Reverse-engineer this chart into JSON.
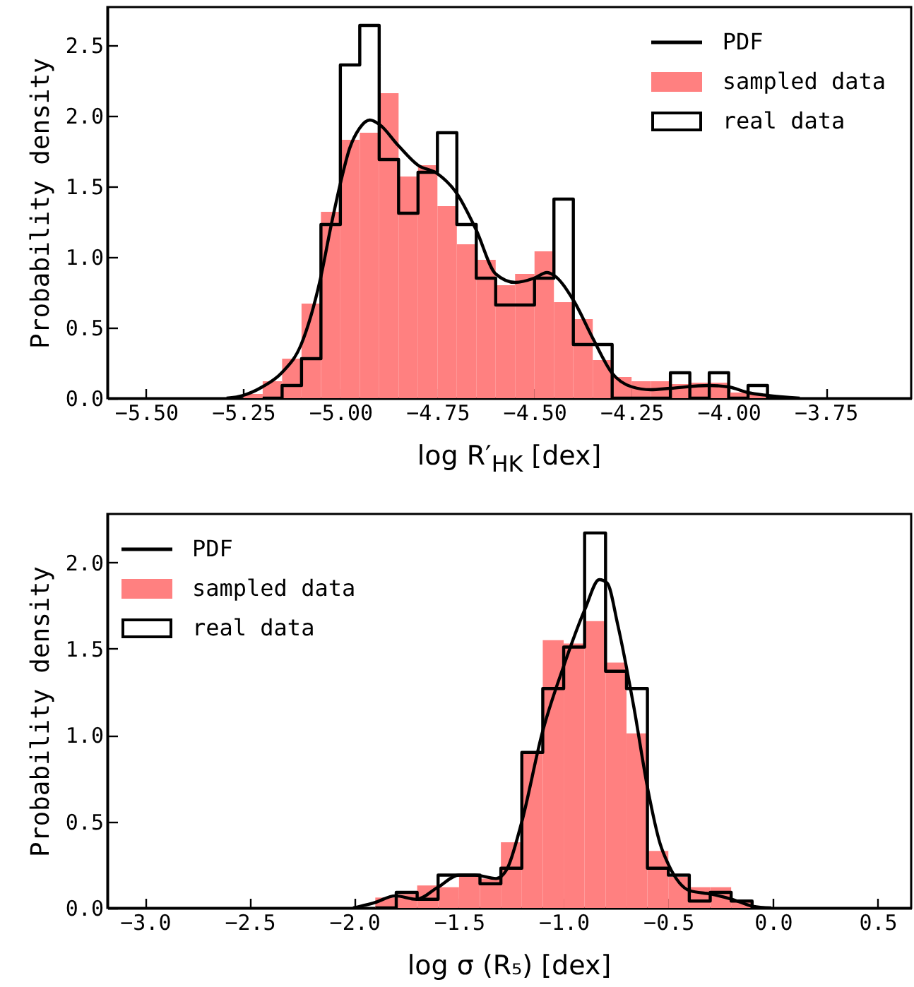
{
  "chart_data": [
    {
      "type": "histogram",
      "xlabel": "log R′$_{HK}$  [dex]",
      "ylabel": "Probability density",
      "legend": "top right",
      "xlim": [
        -5.6,
        -3.53
      ],
      "ylim": [
        0,
        2.77
      ],
      "xticks": [
        {
          "value": -5.5,
          "label": "−5.50"
        },
        {
          "value": -5.25,
          "label": "−5.25"
        },
        {
          "value": -5.0,
          "label": "−5.00"
        },
        {
          "value": -4.75,
          "label": "−4.75"
        },
        {
          "value": -4.5,
          "label": "−4.50"
        },
        {
          "value": -4.25,
          "label": "−4.25"
        },
        {
          "value": -4.0,
          "label": "−4.00"
        },
        {
          "value": -3.75,
          "label": "−3.75"
        }
      ],
      "yticks": [
        {
          "value": 0,
          "label": "0.0"
        },
        {
          "value": 0.5,
          "label": "0.5"
        },
        {
          "value": 1,
          "label": "1.0"
        },
        {
          "value": 1.5,
          "label": "1.5"
        },
        {
          "value": 2,
          "label": "2.0"
        },
        {
          "value": 2.5,
          "label": "2.5"
        }
      ],
      "bins": [
        -5.25,
        -5.2,
        -5.15,
        -5.1,
        -5.05,
        -5.0,
        -4.95,
        -4.9,
        -4.85,
        -4.8,
        -4.75,
        -4.7,
        -4.65,
        -4.6,
        -4.55,
        -4.5,
        -4.45,
        -4.4,
        -4.35,
        -4.3,
        -4.25,
        -4.2,
        -4.15,
        -4.1,
        -4.05,
        -4.0,
        -3.95,
        -3.9
      ],
      "series": [
        {
          "name": "PDF",
          "type": "line",
          "color": "#000000",
          "x": [
            -5.293,
            -5.25,
            -5.201,
            -5.151,
            -5.101,
            -5.051,
            -5.024,
            -5.0,
            -4.976,
            -4.951,
            -4.924,
            -4.9,
            -4.851,
            -4.8,
            -4.75,
            -4.7,
            -4.65,
            -4.6,
            -4.55,
            -4.501,
            -4.468,
            -4.45,
            -4.399,
            -4.349,
            -4.301,
            -4.249,
            -4.201,
            -4.15,
            -4.051,
            -4.0,
            -3.951,
            -3.902,
            -3.817
          ],
          "values": [
            0,
            0.02,
            0.08,
            0.18,
            0.38,
            0.85,
            1.22,
            1.52,
            1.77,
            1.91,
            1.97,
            1.94,
            1.79,
            1.65,
            1.59,
            1.45,
            1.19,
            0.88,
            0.82,
            0.85,
            0.89,
            0.87,
            0.69,
            0.42,
            0.18,
            0.08,
            0.06,
            0.07,
            0.09,
            0.08,
            0.04,
            0.02,
            0
          ]
        },
        {
          "name": "sampled data",
          "color": "#ff8080",
          "values": [
            0.03,
            0.12,
            0.28,
            0.67,
            1.32,
            1.83,
            1.88,
            2.16,
            1.57,
            1.65,
            1.36,
            1.09,
            0.98,
            0.8,
            0.88,
            1.04,
            0.68,
            0.56,
            0.27,
            0.15,
            0.12,
            0.12,
            0.1,
            0.11,
            0.11,
            0.04,
            0.03
          ]
        },
        {
          "name": "real data",
          "type": "step",
          "color": "#000000",
          "x": [
            -5.2,
            -5.15,
            -5.1,
            -5.05,
            -5.0,
            -4.95,
            -4.9,
            -4.85,
            -4.8,
            -4.75,
            -4.7,
            -4.65,
            -4.6,
            -4.55,
            -4.5,
            -4.45,
            -4.4,
            -4.35,
            -4.3,
            -4.25,
            -4.2,
            -4.15,
            -4.1,
            -4.05,
            -4.0,
            -3.95,
            -3.9
          ],
          "values": [
            0,
            0.09,
            0.28,
            1.23,
            2.36,
            2.64,
            1.69,
            1.31,
            1.6,
            1.88,
            1.23,
            0.85,
            0.66,
            0.66,
            0.85,
            1.41,
            0.38,
            0.38,
            0,
            0,
            0,
            0.18,
            0,
            0.18,
            0,
            0.09,
            0
          ]
        }
      ]
    },
    {
      "type": "histogram",
      "xlabel": "log σ (R₅)  [dex]",
      "ylabel": "Probability density",
      "legend": "top left",
      "xlim": [
        -3.18,
        0.66
      ],
      "ylim": [
        0,
        2.28
      ],
      "xticks": [
        {
          "value": -3.0,
          "label": "−3.0"
        },
        {
          "value": -2.5,
          "label": "−2.5"
        },
        {
          "value": -2.0,
          "label": "−2.0"
        },
        {
          "value": -1.5,
          "label": "−1.5"
        },
        {
          "value": -1.0,
          "label": "−1.0"
        },
        {
          "value": -0.5,
          "label": "−0.5"
        },
        {
          "value": 0,
          "label": "0.0"
        },
        {
          "value": 0.5,
          "label": "0.5"
        }
      ],
      "yticks": [
        {
          "value": 0,
          "label": "0.0"
        },
        {
          "value": 0.5,
          "label": "0.5"
        },
        {
          "value": 1,
          "label": "1.0"
        },
        {
          "value": 1.5,
          "label": "1.5"
        },
        {
          "value": 2,
          "label": "2.0"
        }
      ],
      "bins": [
        -1.9,
        -1.8,
        -1.7,
        -1.6,
        -1.5,
        -1.4,
        -1.3,
        -1.2,
        -1.1,
        -1.0,
        -0.9,
        -0.8,
        -0.7,
        -0.6,
        -0.5,
        -0.4,
        -0.3,
        -0.2,
        -0.1
      ],
      "series": [
        {
          "name": "PDF",
          "type": "line",
          "color": "#000000",
          "x": [
            -2.006,
            -1.905,
            -1.804,
            -1.703,
            -1.601,
            -1.5,
            -1.424,
            -1.323,
            -1.273,
            -1.202,
            -1.101,
            -1.0,
            -0.898,
            -0.83,
            -0.792,
            -0.742,
            -0.666,
            -0.597,
            -0.539,
            -0.499,
            -0.398,
            -0.296,
            -0.195,
            -0.097,
            -0.008
          ],
          "values": [
            0,
            0.03,
            0.07,
            0.05,
            0.12,
            0.19,
            0.19,
            0.17,
            0.22,
            0.49,
            1.02,
            1.4,
            1.73,
            1.9,
            1.88,
            1.64,
            1.17,
            0.68,
            0.37,
            0.25,
            0.1,
            0.08,
            0.05,
            0.01,
            0
          ]
        },
        {
          "name": "sampled data",
          "color": "#ff8080",
          "values": [
            0.06,
            0.08,
            0.13,
            0.12,
            0.19,
            0.17,
            0.38,
            0.9,
            1.55,
            1.53,
            1.66,
            1.42,
            1.01,
            0.33,
            0.18,
            0.12,
            0.12,
            0.04
          ]
        },
        {
          "name": "real data",
          "type": "step",
          "color": "#000000",
          "x": [
            -1.9,
            -1.8,
            -1.7,
            -1.6,
            -1.5,
            -1.4,
            -1.3,
            -1.2,
            -1.1,
            -1.0,
            -0.9,
            -0.8,
            -0.7,
            -0.6,
            -0.5,
            -0.4,
            -0.3,
            -0.2,
            -0.1
          ],
          "values": [
            0,
            0.09,
            0.05,
            0.19,
            0.19,
            0.14,
            0.23,
            0.9,
            1.27,
            1.51,
            2.17,
            1.37,
            1.27,
            0.23,
            0.19,
            0.04,
            0.09,
            0.04,
            0
          ]
        }
      ]
    }
  ]
}
